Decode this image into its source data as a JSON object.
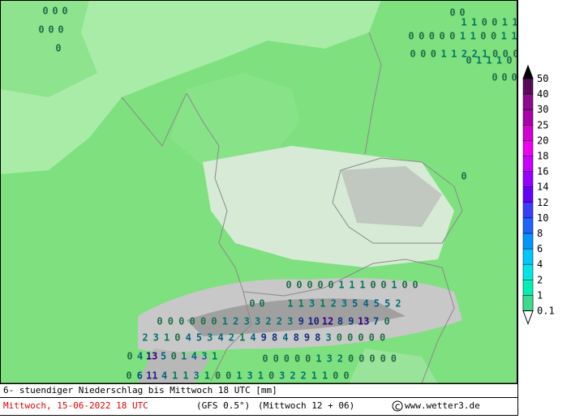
{
  "map": {
    "labels": [
      {
        "values": [
          0,
          0,
          0
        ]
      },
      {
        "values": [
          0,
          0,
          0
        ]
      },
      {
        "values": [
          0
        ]
      },
      {
        "values": [
          0,
          0
        ]
      },
      {
        "values": [
          1,
          1,
          0,
          0,
          1,
          1
        ]
      },
      {
        "values": [
          0,
          0,
          0,
          0,
          0,
          1,
          1,
          0,
          0,
          1,
          1
        ]
      },
      {
        "values": [
          0,
          0,
          0,
          1,
          1,
          2,
          2,
          1,
          0,
          0,
          0
        ]
      },
      {
        "values": [
          0,
          1,
          1,
          1,
          0
        ]
      },
      {
        "values": [
          0,
          0,
          0
        ]
      },
      {
        "values": [
          0
        ]
      },
      {
        "values": [
          0,
          0,
          0,
          0,
          0,
          1,
          1,
          1,
          0,
          0,
          1,
          0,
          0
        ]
      },
      {
        "values": [
          0,
          0
        ]
      },
      {
        "values": [
          1,
          1,
          3,
          1,
          2,
          3,
          5,
          4,
          5,
          5,
          2
        ]
      },
      {
        "values": [
          0,
          0,
          0,
          0,
          0,
          0,
          1,
          2,
          3,
          3,
          2,
          2,
          3,
          9,
          10,
          12,
          8,
          9,
          13,
          7,
          0
        ]
      },
      {
        "values": [
          2,
          3,
          1,
          0,
          4,
          5,
          3,
          4,
          2,
          1,
          4,
          9,
          8,
          4,
          8,
          9,
          8,
          3,
          0,
          0,
          0,
          0,
          0
        ]
      },
      {
        "values": [
          0,
          4,
          13,
          5,
          0,
          1,
          4,
          3,
          1
        ]
      },
      {
        "values": [
          0,
          0,
          0,
          0,
          0,
          1,
          3,
          2,
          0,
          0,
          0,
          0,
          0
        ]
      },
      {
        "values": [
          0,
          6,
          11,
          4,
          1,
          1,
          3,
          1,
          0,
          0,
          1,
          3,
          1,
          0,
          3,
          2,
          2,
          1,
          1,
          0,
          0
        ]
      }
    ]
  },
  "legend": {
    "levels": [
      {
        "value": 50,
        "color": "#000000"
      },
      {
        "value": 40,
        "color": "#5a0a5a"
      },
      {
        "value": 30,
        "color": "#8c0a8c"
      },
      {
        "value": 25,
        "color": "#aa00aa"
      },
      {
        "value": 20,
        "color": "#d200d2"
      },
      {
        "value": 18,
        "color": "#f000f0"
      },
      {
        "value": 16,
        "color": "#c800ff"
      },
      {
        "value": 14,
        "color": "#9600ff"
      },
      {
        "value": 12,
        "color": "#6400ff"
      },
      {
        "value": 10,
        "color": "#3c3cff"
      },
      {
        "value": 8,
        "color": "#1e64ff"
      },
      {
        "value": 6,
        "color": "#0096ff"
      },
      {
        "value": 4,
        "color": "#00c8ff"
      },
      {
        "value": 2,
        "color": "#00e6e6"
      },
      {
        "value": 1,
        "color": "#00f0b4"
      },
      {
        "value": 0.1,
        "color": "#3cdc8c"
      }
    ]
  },
  "footer": {
    "line1": "6- stuendiger Niederschlag bis Mittwoch 18 UTC [mm]",
    "date": "Mittwoch, 15-06-2022  18 UTC",
    "model": "(GFS 0.5°)",
    "run": "(Mittwoch 12 + 06)",
    "source": "www.wetter3.de"
  }
}
